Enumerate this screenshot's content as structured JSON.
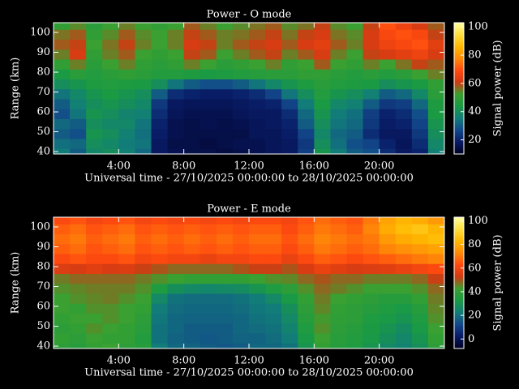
{
  "chart_data": [
    {
      "type": "heatmap",
      "title": "Power - O mode",
      "xlabel": "Universal time - 27/10/2025 00:00:00 to 28/10/2025 00:00:00",
      "ylabel": "Range (km)",
      "xlim": [
        0,
        24
      ],
      "ylim": [
        38.8,
        104.9
      ],
      "xticks": [
        {
          "value": 4,
          "label": "4:00"
        },
        {
          "value": 8,
          "label": "8:00"
        },
        {
          "value": 12,
          "label": "12:00"
        },
        {
          "value": 16,
          "label": "16:00"
        },
        {
          "value": 20,
          "label": "20:00"
        }
      ],
      "yticks": [
        40,
        50,
        60,
        70,
        80,
        90,
        100
      ],
      "colorbar": {
        "label": "Signal power (dB)",
        "clim": [
          10,
          103
        ],
        "ticks": [
          20,
          40,
          60,
          80,
          100
        ]
      },
      "colormap": [
        "#000020",
        "#081a64",
        "#12488a",
        "#127e78",
        "#1a9a44",
        "#3aa030",
        "#d03a12",
        "#ff4a10",
        "#ff8a08",
        "#ffb800",
        "#ffe040",
        "#ffffa0"
      ],
      "x": [
        0.5,
        1.5,
        2.5,
        3.5,
        4.5,
        5.5,
        6.5,
        7.5,
        8.5,
        9.5,
        10.5,
        11.5,
        12.5,
        13.5,
        14.5,
        15.5,
        16.5,
        17.5,
        18.5,
        19.5,
        20.5,
        21.5,
        22.5,
        23.5
      ],
      "y": [
        39,
        44,
        49,
        54,
        59,
        64,
        69,
        74,
        79,
        84,
        89,
        94,
        99,
        104
      ],
      "z": [
        [
          35,
          30,
          38,
          40,
          36,
          32,
          18,
          16,
          15,
          15,
          14,
          15,
          16,
          17,
          18,
          25,
          42,
          35,
          30,
          28,
          22,
          18,
          20,
          36
        ],
        [
          33,
          32,
          40,
          38,
          35,
          34,
          18,
          15,
          15,
          14,
          15,
          16,
          16,
          17,
          18,
          24,
          40,
          33,
          28,
          26,
          20,
          17,
          22,
          38
        ],
        [
          30,
          28,
          42,
          40,
          36,
          33,
          19,
          16,
          15,
          15,
          15,
          15,
          17,
          17,
          19,
          26,
          38,
          32,
          30,
          22,
          18,
          18,
          24,
          40
        ],
        [
          32,
          30,
          40,
          38,
          38,
          34,
          20,
          16,
          15,
          16,
          15,
          16,
          17,
          18,
          20,
          30,
          40,
          34,
          32,
          24,
          19,
          20,
          26,
          42
        ],
        [
          28,
          34,
          42,
          40,
          37,
          36,
          22,
          17,
          16,
          16,
          16,
          17,
          18,
          18,
          22,
          32,
          42,
          35,
          33,
          25,
          20,
          22,
          28,
          44
        ],
        [
          30,
          36,
          40,
          42,
          40,
          38,
          24,
          18,
          17,
          17,
          17,
          18,
          19,
          20,
          26,
          35,
          44,
          38,
          36,
          30,
          24,
          25,
          32,
          45
        ],
        [
          34,
          38,
          42,
          44,
          42,
          40,
          30,
          22,
          20,
          19,
          19,
          20,
          22,
          26,
          34,
          40,
          46,
          42,
          40,
          36,
          30,
          32,
          38,
          48
        ],
        [
          40,
          42,
          45,
          46,
          45,
          44,
          40,
          34,
          30,
          28,
          28,
          30,
          34,
          38,
          42,
          45,
          48,
          46,
          45,
          44,
          40,
          42,
          44,
          50
        ],
        [
          44,
          48,
          46,
          48,
          50,
          48,
          46,
          46,
          45,
          44,
          45,
          46,
          47,
          48,
          48,
          50,
          50,
          48,
          46,
          48,
          46,
          48,
          52,
          55
        ],
        [
          50,
          55,
          48,
          52,
          55,
          50,
          48,
          50,
          55,
          52,
          48,
          50,
          52,
          55,
          50,
          52,
          58,
          52,
          50,
          55,
          52,
          56,
          60,
          58
        ],
        [
          55,
          62,
          50,
          55,
          58,
          52,
          50,
          52,
          60,
          58,
          52,
          55,
          58,
          60,
          55,
          58,
          62,
          55,
          52,
          60,
          62,
          64,
          66,
          62
        ],
        [
          58,
          60,
          52,
          56,
          60,
          55,
          52,
          55,
          62,
          60,
          55,
          58,
          60,
          62,
          58,
          62,
          64,
          58,
          55,
          62,
          66,
          68,
          70,
          64
        ],
        [
          56,
          58,
          50,
          54,
          58,
          54,
          52,
          55,
          60,
          58,
          55,
          56,
          58,
          60,
          56,
          60,
          62,
          56,
          54,
          62,
          68,
          70,
          68,
          60
        ],
        [
          50,
          54,
          48,
          52,
          55,
          52,
          50,
          52,
          58,
          55,
          52,
          54,
          56,
          58,
          54,
          56,
          60,
          54,
          52,
          60,
          70,
          66,
          62,
          58
        ]
      ]
    },
    {
      "type": "heatmap",
      "title": "Power - E mode",
      "xlabel": "Universal time - 27/10/2025 00:00:00 to 28/10/2025 00:00:00",
      "ylabel": "Range (km)",
      "xlim": [
        0,
        24
      ],
      "ylim": [
        38.8,
        104.9
      ],
      "xticks": [
        {
          "value": 4,
          "label": "4:00"
        },
        {
          "value": 8,
          "label": "8:00"
        },
        {
          "value": 12,
          "label": "12:00"
        },
        {
          "value": 16,
          "label": "16:00"
        },
        {
          "value": 20,
          "label": "20:00"
        }
      ],
      "yticks": [
        40,
        50,
        60,
        70,
        80,
        90,
        100
      ],
      "colorbar": {
        "label": "Signal power (dB)",
        "clim": [
          -8,
          103
        ],
        "ticks": [
          0,
          20,
          40,
          60,
          80,
          100
        ]
      },
      "colormap": [
        "#000020",
        "#081a64",
        "#12488a",
        "#127e78",
        "#1a9a44",
        "#3aa030",
        "#d03a12",
        "#ff4a10",
        "#ff8a08",
        "#ffb800",
        "#ffe040",
        "#ffffa0"
      ],
      "x": [
        0.5,
        1.5,
        2.5,
        3.5,
        4.5,
        5.5,
        6.5,
        7.5,
        8.5,
        9.5,
        10.5,
        11.5,
        12.5,
        13.5,
        14.5,
        15.5,
        16.5,
        17.5,
        18.5,
        19.5,
        20.5,
        21.5,
        22.5,
        23.5
      ],
      "y": [
        39,
        44,
        49,
        54,
        59,
        64,
        69,
        74,
        79,
        84,
        89,
        94,
        99,
        104
      ],
      "z": [
        [
          38,
          36,
          40,
          42,
          38,
          36,
          22,
          18,
          17,
          16,
          15,
          16,
          18,
          18,
          20,
          30,
          40,
          36,
          34,
          30,
          26,
          24,
          28,
          38
        ],
        [
          40,
          38,
          42,
          40,
          40,
          35,
          20,
          17,
          16,
          15,
          16,
          17,
          17,
          19,
          22,
          32,
          42,
          37,
          35,
          32,
          28,
          25,
          30,
          40
        ],
        [
          38,
          40,
          44,
          42,
          40,
          37,
          20,
          18,
          16,
          16,
          16,
          18,
          19,
          20,
          24,
          34,
          44,
          38,
          36,
          33,
          30,
          27,
          32,
          42
        ],
        [
          40,
          42,
          42,
          44,
          42,
          38,
          21,
          18,
          17,
          17,
          17,
          18,
          20,
          21,
          26,
          36,
          43,
          39,
          38,
          34,
          32,
          30,
          34,
          44
        ],
        [
          42,
          40,
          44,
          44,
          42,
          40,
          22,
          19,
          18,
          18,
          18,
          19,
          21,
          22,
          28,
          38,
          45,
          40,
          38,
          36,
          34,
          32,
          36,
          45
        ],
        [
          42,
          44,
          45,
          46,
          44,
          42,
          26,
          20,
          19,
          19,
          19,
          20,
          22,
          26,
          32,
          40,
          46,
          42,
          40,
          38,
          36,
          36,
          40,
          46
        ],
        [
          44,
          45,
          46,
          46,
          46,
          44,
          34,
          28,
          26,
          25,
          26,
          27,
          30,
          34,
          38,
          44,
          48,
          46,
          44,
          42,
          42,
          42,
          44,
          48
        ],
        [
          46,
          48,
          48,
          48,
          48,
          46,
          44,
          42,
          40,
          40,
          40,
          40,
          42,
          44,
          45,
          48,
          50,
          48,
          48,
          46,
          46,
          46,
          48,
          52
        ],
        [
          55,
          54,
          56,
          54,
          55,
          52,
          50,
          48,
          48,
          48,
          48,
          50,
          52,
          52,
          50,
          54,
          58,
          56,
          54,
          55,
          56,
          58,
          60,
          62
        ],
        [
          62,
          64,
          62,
          62,
          64,
          60,
          62,
          60,
          60,
          58,
          60,
          60,
          62,
          62,
          58,
          62,
          66,
          64,
          62,
          64,
          66,
          68,
          70,
          72
        ],
        [
          66,
          68,
          64,
          66,
          68,
          64,
          66,
          64,
          66,
          64,
          66,
          64,
          66,
          66,
          62,
          66,
          70,
          68,
          66,
          68,
          72,
          74,
          76,
          78
        ],
        [
          68,
          70,
          66,
          68,
          70,
          66,
          68,
          66,
          68,
          66,
          68,
          66,
          68,
          68,
          64,
          68,
          72,
          70,
          68,
          70,
          76,
          80,
          82,
          84
        ],
        [
          66,
          68,
          64,
          66,
          68,
          64,
          66,
          64,
          66,
          64,
          66,
          64,
          66,
          66,
          62,
          66,
          70,
          68,
          66,
          72,
          80,
          84,
          86,
          82
        ],
        [
          62,
          64,
          60,
          62,
          64,
          60,
          62,
          60,
          62,
          60,
          62,
          60,
          62,
          62,
          60,
          64,
          68,
          66,
          64,
          70,
          78,
          82,
          80,
          76
        ]
      ]
    }
  ]
}
